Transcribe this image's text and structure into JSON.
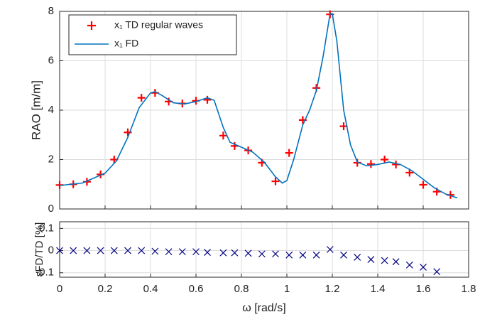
{
  "chart_data": [
    {
      "type": "line",
      "ylabel": "RAO [m/m]",
      "xlim": [
        0,
        1.8
      ],
      "ylim": [
        0,
        8
      ],
      "xticks": [
        0,
        0.2,
        0.4,
        0.6,
        0.8,
        1,
        1.2,
        1.4,
        1.6,
        1.8
      ],
      "yticks": [
        0,
        2,
        4,
        6,
        8
      ],
      "show_xticklabels": false,
      "grid": true,
      "legend": "upper left",
      "series": [
        {
          "name": "x₁ TD regular waves",
          "color": "#ff0000",
          "marker": "+",
          "x": [
            0.0,
            0.06,
            0.12,
            0.18,
            0.24,
            0.3,
            0.36,
            0.42,
            0.48,
            0.54,
            0.6,
            0.65,
            0.72,
            0.77,
            0.83,
            0.89,
            0.95,
            1.01,
            1.07,
            1.13,
            1.19,
            1.25,
            1.31,
            1.37,
            1.43,
            1.48,
            1.54,
            1.6,
            1.66,
            1.72
          ],
          "values": [
            0.97,
            1.0,
            1.1,
            1.4,
            2.0,
            3.1,
            4.5,
            4.7,
            4.35,
            4.27,
            4.38,
            4.42,
            2.97,
            2.55,
            2.37,
            1.87,
            1.12,
            2.27,
            3.6,
            4.9,
            7.88,
            3.35,
            1.87,
            1.82,
            2.0,
            1.8,
            1.47,
            0.98,
            0.7,
            0.57
          ]
        },
        {
          "name": "x₁ FD",
          "color": "#0072bd",
          "marker": "none",
          "x": [
            0,
            0.1,
            0.2,
            0.25,
            0.3,
            0.35,
            0.4,
            0.42,
            0.45,
            0.5,
            0.55,
            0.6,
            0.65,
            0.68,
            0.72,
            0.75,
            0.8,
            0.85,
            0.9,
            0.95,
            0.98,
            1.0,
            1.03,
            1.07,
            1.1,
            1.13,
            1.16,
            1.19,
            1.2,
            1.22,
            1.25,
            1.28,
            1.31,
            1.35,
            1.4,
            1.45,
            1.5,
            1.55,
            1.6,
            1.65,
            1.7,
            1.75
          ],
          "values": [
            0.95,
            1.05,
            1.45,
            1.95,
            2.9,
            4.1,
            4.7,
            4.75,
            4.6,
            4.3,
            4.25,
            4.35,
            4.5,
            4.4,
            3.3,
            2.7,
            2.5,
            2.3,
            1.9,
            1.3,
            1.05,
            1.15,
            2.0,
            3.4,
            4.0,
            4.8,
            6.2,
            7.9,
            7.9,
            6.8,
            4.0,
            2.6,
            1.9,
            1.75,
            1.8,
            1.9,
            1.8,
            1.55,
            1.2,
            0.85,
            0.6,
            0.45
          ]
        }
      ]
    },
    {
      "type": "scatter",
      "xlabel": "ω [rad/s]",
      "ylabel": "εFD/TD [%]",
      "xlim": [
        0,
        1.8
      ],
      "ylim": [
        -0.12,
        0.13
      ],
      "xticks": [
        0,
        0.2,
        0.4,
        0.6,
        0.8,
        1,
        1.2,
        1.4,
        1.6,
        1.8
      ],
      "yticks": [
        -0.1,
        0,
        0.1
      ],
      "show_xticklabels": true,
      "grid": true,
      "color": "#000080",
      "marker": "x",
      "x": [
        0.0,
        0.06,
        0.12,
        0.18,
        0.24,
        0.3,
        0.36,
        0.42,
        0.48,
        0.54,
        0.6,
        0.65,
        0.72,
        0.77,
        0.83,
        0.89,
        0.95,
        1.01,
        1.07,
        1.13,
        1.19,
        1.25,
        1.31,
        1.37,
        1.43,
        1.48,
        1.54,
        1.6,
        1.66
      ],
      "values": [
        0,
        0,
        0,
        0,
        0,
        0,
        0,
        -0.003,
        -0.005,
        -0.005,
        -0.005,
        -0.008,
        -0.01,
        -0.01,
        -0.012,
        -0.015,
        -0.015,
        -0.02,
        -0.02,
        -0.02,
        0.005,
        -0.02,
        -0.03,
        -0.04,
        -0.045,
        -0.05,
        -0.065,
        -0.075,
        -0.095
      ]
    }
  ]
}
